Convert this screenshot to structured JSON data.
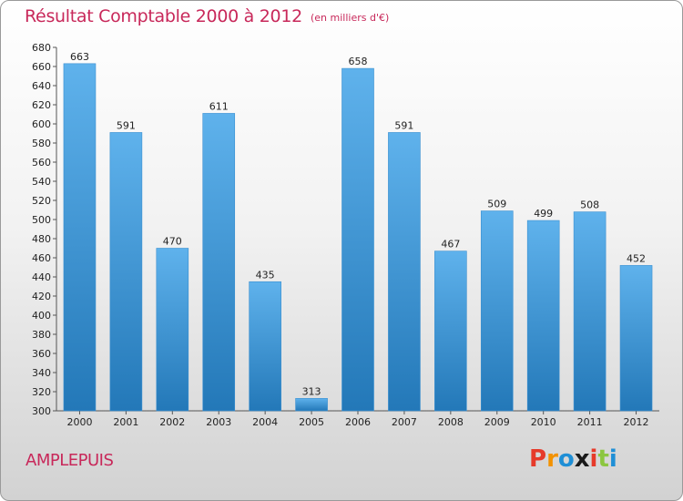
{
  "header": {
    "title": "Résultat Comptable 2000 à 2012",
    "subtitle": "(en milliers d'€)"
  },
  "footer": {
    "town": "AMPLEPUIS",
    "logo": {
      "letters": [
        "P",
        "r",
        "o",
        "x",
        "i",
        "t",
        "i"
      ],
      "colors": [
        "#e63a2a",
        "#f39200",
        "#1f8fd6",
        "#1a1a1a",
        "#e63a2a",
        "#8cc63f",
        "#1f8fd6"
      ]
    }
  },
  "chart_data": {
    "type": "bar",
    "categories": [
      "2000",
      "2001",
      "2002",
      "2003",
      "2004",
      "2005",
      "2006",
      "2007",
      "2008",
      "2009",
      "2010",
      "2011",
      "2012"
    ],
    "values": [
      663,
      591,
      470,
      611,
      435,
      313,
      658,
      591,
      467,
      509,
      499,
      508,
      452
    ],
    "ylim": [
      300,
      680
    ],
    "yticks": [
      300,
      320,
      340,
      360,
      380,
      400,
      420,
      440,
      460,
      480,
      500,
      520,
      540,
      560,
      580,
      600,
      620,
      640,
      660,
      680
    ],
    "grid": false,
    "bar_color_top": "#5fb2ec",
    "bar_color_bottom": "#2378b8"
  }
}
